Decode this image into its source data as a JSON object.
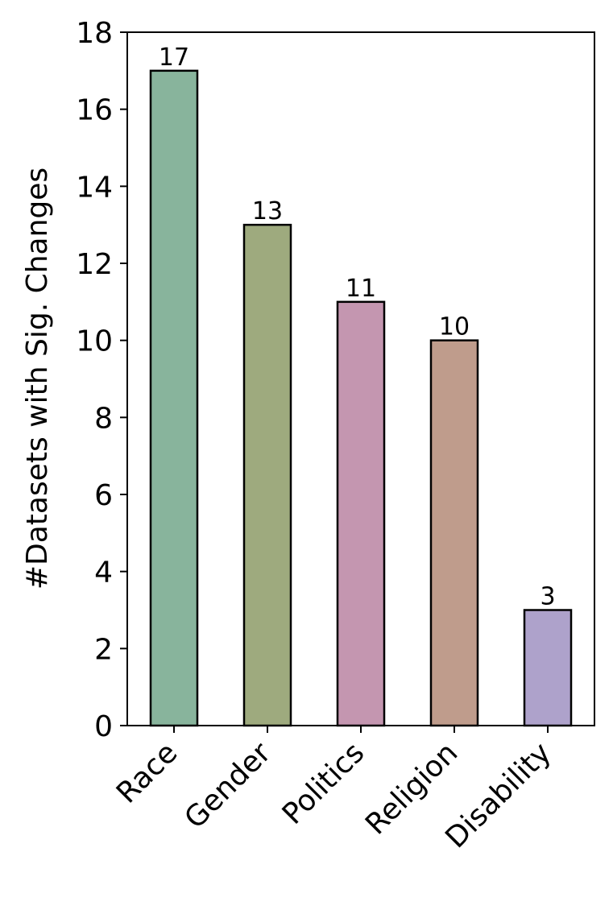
{
  "chart_data": {
    "type": "bar",
    "title": "",
    "xlabel": "",
    "ylabel": "#Datasets with Sig. Changes",
    "categories": [
      "Race",
      "Gender",
      "Politics",
      "Religion",
      "Disability"
    ],
    "values": [
      17,
      13,
      11,
      10,
      3
    ],
    "data_labels": [
      "17",
      "13",
      "11",
      "10",
      "3"
    ],
    "colors": [
      "#88b49c",
      "#9eaa7e",
      "#c496b0",
      "#bf9c8c",
      "#aea2cb"
    ],
    "edge_color": "#000000",
    "ylim": [
      0,
      18
    ],
    "yticks": [
      0,
      2,
      4,
      6,
      8,
      10,
      12,
      14,
      16,
      18
    ],
    "grid": false,
    "legend": "none",
    "x_tick_rotation": "45 degrees"
  }
}
